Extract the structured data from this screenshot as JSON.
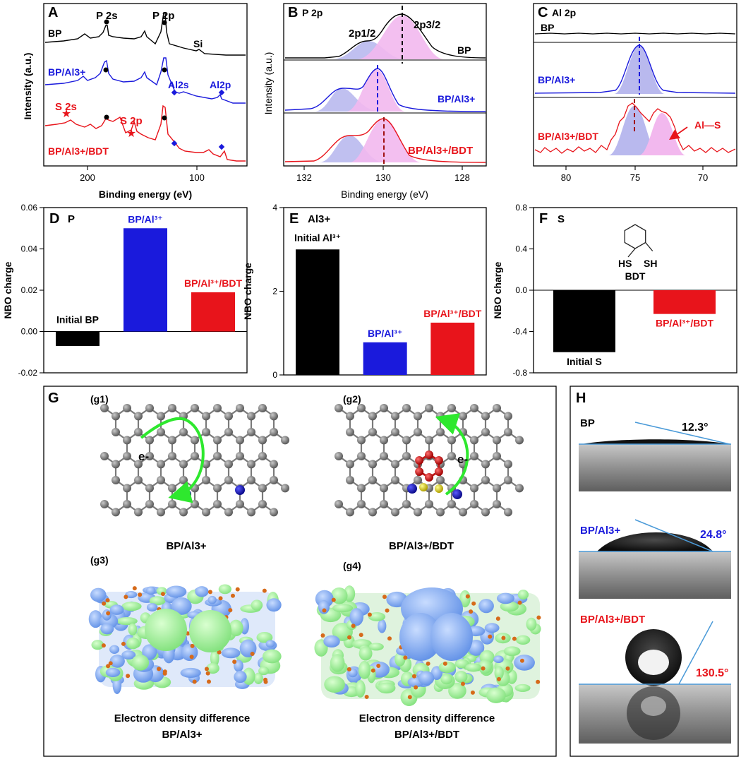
{
  "colors": {
    "black": "#000000",
    "blue": "#1a1adc",
    "red": "#e8141b",
    "fill_blue": "#b9b9ee",
    "fill_pink": "#f2b8ee",
    "green": "#2ee82e"
  },
  "panels": {
    "A": {
      "letter": "A",
      "xlabel": "Binding energy (eV)",
      "ylabel": "Intensity (a.u.)",
      "ticks": [
        "200",
        "100"
      ],
      "series": [
        "BP",
        "BP/Al3+",
        "BP/Al3+/BDT"
      ],
      "peaks": {
        "p2s": "P 2s",
        "p2p": "P 2p",
        "si": "Si",
        "al2s": "Al2s",
        "al2p": "Al2p",
        "s2s": "S 2s",
        "s2p": "S 2p"
      }
    },
    "B": {
      "letter": "B",
      "title": "P 2p",
      "xlabel": "Binding energy (eV)",
      "ylabel": "Intensity (a.u.)",
      "ticks": [
        "132",
        "130",
        "128"
      ],
      "series": [
        "BP",
        "BP/Al3+",
        "BP/Al3+/BDT"
      ],
      "peak_half": "2p1/2",
      "peak_3half": "2p3/2"
    },
    "C": {
      "letter": "C",
      "title": "Al 2p",
      "ticks": [
        "80",
        "75",
        "70"
      ],
      "series": [
        "BP",
        "BP/Al3+",
        "BP/Al3+/BDT"
      ],
      "al_s": "Al—S"
    },
    "G": {
      "letter": "G",
      "g1": "(g1)",
      "g2": "(g2)",
      "g3": "(g3)",
      "g4": "(g4)",
      "cap1": "BP/Al3+",
      "cap2": "BP/Al3+/BDT",
      "cap3a": "Electron density difference",
      "cap3b": "BP/Al3+",
      "cap4a": "Electron density difference",
      "cap4b": "BP/Al3+/BDT",
      "electron": "e-"
    },
    "H": {
      "letter": "H",
      "labels": [
        "BP",
        "BP/Al3+",
        "BP/Al3+/BDT"
      ],
      "angles": [
        "12.3°",
        "24.8°",
        "130.5°"
      ]
    }
  },
  "chart_data": [
    {
      "panel": "D",
      "type": "bar",
      "title": "P",
      "ylabel": "NBO charge",
      "categories": [
        "Initial BP",
        "BP/Al3+",
        "BP/Al3+/BDT"
      ],
      "values": [
        -0.007,
        0.05,
        0.019
      ],
      "ylim": [
        -0.02,
        0.06
      ],
      "yticks": [
        "-0.02",
        "0.00",
        "0.02",
        "0.04",
        "0.06"
      ]
    },
    {
      "panel": "E",
      "type": "bar",
      "title": "Al3+",
      "ylabel": "NBO charge",
      "categories": [
        "Initial Al3+",
        "BP/Al3+",
        "BP/Al3+/BDT"
      ],
      "values": [
        3.0,
        0.78,
        1.25
      ],
      "ylim": [
        0,
        4
      ],
      "yticks": [
        "0",
        "2",
        "4"
      ]
    },
    {
      "panel": "F",
      "type": "bar",
      "title": "S",
      "ylabel": "NBO charge",
      "categories": [
        "Initial S",
        "BP/Al3+/BDT"
      ],
      "values": [
        -0.6,
        -0.23
      ],
      "ylim": [
        -0.8,
        0.8
      ],
      "yticks": [
        "-0.8",
        "-0.4",
        "0.0",
        "0.4",
        "0.8"
      ],
      "molecule": {
        "name": "BDT",
        "left": "HS",
        "right": "SH"
      }
    }
  ]
}
